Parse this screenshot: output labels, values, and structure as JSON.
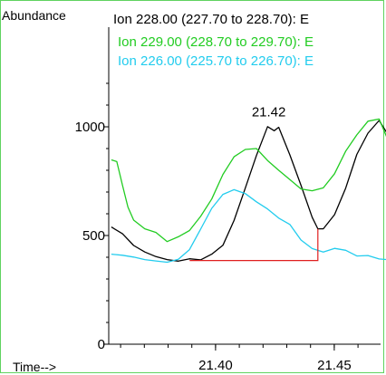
{
  "colors": {
    "frame": "#5fd35f",
    "ion_228": "#000000",
    "ion_229": "#22cc22",
    "ion_226": "#22ccee",
    "baseline": "#e02020"
  },
  "chart_data": {
    "type": "line",
    "ylabel": "Abundance",
    "xlabel": "Time-->",
    "xlim": [
      21.355,
      21.47
    ],
    "ylim": [
      0,
      1300
    ],
    "x_ticks": [
      {
        "value": 21.4,
        "label": "21.40"
      },
      {
        "value": 21.45,
        "label": "21.45"
      }
    ],
    "x_minor_ticks": [
      21.36,
      21.37,
      21.38,
      21.39,
      21.4,
      21.41,
      21.42,
      21.43,
      21.44,
      21.45,
      21.46,
      21.47
    ],
    "y_ticks": [
      {
        "value": 0,
        "label": "0"
      },
      {
        "value": 500,
        "label": "500"
      },
      {
        "value": 1000,
        "label": "1000"
      }
    ],
    "y_minor_ticks": [
      100,
      200,
      300,
      400,
      600,
      700,
      800,
      900,
      1100,
      1200
    ],
    "peak_label": {
      "text": "21.42",
      "x": 21.4224,
      "y": 1015
    },
    "baseline": [
      {
        "x": 21.3891,
        "y": 385
      },
      {
        "x": 21.4431,
        "y": 385
      },
      {
        "x": 21.4431,
        "y": 531
      }
    ],
    "series": [
      {
        "name": "Ion 228.00 (227.70 to 228.70): E",
        "color": "#000000",
        "points": [
          [
            21.3561,
            539
          ],
          [
            21.3608,
            508
          ],
          [
            21.3655,
            454
          ],
          [
            21.3702,
            424
          ],
          [
            21.3749,
            403
          ],
          [
            21.3796,
            389
          ],
          [
            21.3843,
            382
          ],
          [
            21.389,
            393
          ],
          [
            21.3937,
            388
          ],
          [
            21.3984,
            414
          ],
          [
            21.4031,
            455
          ],
          [
            21.4078,
            569
          ],
          [
            21.4125,
            718
          ],
          [
            21.4172,
            868
          ],
          [
            21.4219,
            1001
          ],
          [
            21.4247,
            982
          ],
          [
            21.4266,
            998
          ],
          [
            21.4313,
            871
          ],
          [
            21.436,
            731
          ],
          [
            21.4407,
            584
          ],
          [
            21.4431,
            531
          ],
          [
            21.4454,
            531
          ],
          [
            21.4501,
            596
          ],
          [
            21.4548,
            718
          ],
          [
            21.4595,
            873
          ],
          [
            21.4642,
            971
          ],
          [
            21.4689,
            1029
          ],
          [
            21.4736,
            948
          ]
        ]
      },
      {
        "name": "Ion 229.00 (228.70 to 229.70): E",
        "color": "#22cc22",
        "points": [
          [
            21.3561,
            848
          ],
          [
            21.3584,
            840
          ],
          [
            21.3608,
            731
          ],
          [
            21.3631,
            631
          ],
          [
            21.3655,
            571
          ],
          [
            21.3702,
            531
          ],
          [
            21.3749,
            514
          ],
          [
            21.3796,
            472
          ],
          [
            21.3843,
            494
          ],
          [
            21.389,
            523
          ],
          [
            21.3937,
            588
          ],
          [
            21.3984,
            668
          ],
          [
            21.4031,
            781
          ],
          [
            21.4078,
            862
          ],
          [
            21.4125,
            896
          ],
          [
            21.4172,
            900
          ],
          [
            21.4219,
            845
          ],
          [
            21.4266,
            800
          ],
          [
            21.4313,
            757
          ],
          [
            21.436,
            714
          ],
          [
            21.4407,
            706
          ],
          [
            21.4454,
            719
          ],
          [
            21.4501,
            784
          ],
          [
            21.4548,
            888
          ],
          [
            21.4595,
            963
          ],
          [
            21.4642,
            1026
          ],
          [
            21.4689,
            1036
          ],
          [
            21.4736,
            914
          ]
        ]
      },
      {
        "name": "Ion 226.00 (225.70 to 226.70): E",
        "color": "#22ccee",
        "points": [
          [
            21.3561,
            414
          ],
          [
            21.3608,
            409
          ],
          [
            21.3655,
            401
          ],
          [
            21.3702,
            389
          ],
          [
            21.3749,
            383
          ],
          [
            21.3796,
            377
          ],
          [
            21.3843,
            391
          ],
          [
            21.389,
            435
          ],
          [
            21.3937,
            529
          ],
          [
            21.3984,
            625
          ],
          [
            21.4031,
            689
          ],
          [
            21.4078,
            711
          ],
          [
            21.4125,
            693
          ],
          [
            21.4172,
            655
          ],
          [
            21.4219,
            622
          ],
          [
            21.4266,
            580
          ],
          [
            21.4313,
            551
          ],
          [
            21.436,
            479
          ],
          [
            21.4407,
            440
          ],
          [
            21.4454,
            424
          ],
          [
            21.4501,
            441
          ],
          [
            21.4548,
            432
          ],
          [
            21.4595,
            406
          ],
          [
            21.4642,
            408
          ],
          [
            21.4689,
            392
          ],
          [
            21.4736,
            388
          ]
        ]
      }
    ]
  }
}
